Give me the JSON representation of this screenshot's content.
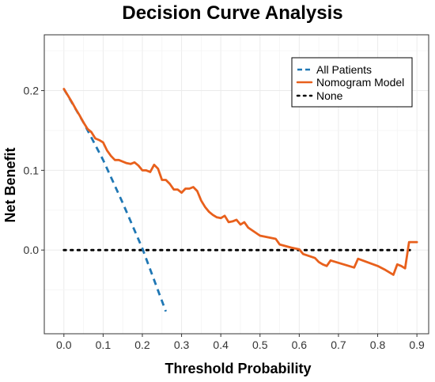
{
  "chart_data": {
    "type": "line",
    "title": "Decision Curve Analysis",
    "xlabel": "Threshold Probability",
    "ylabel": "Net Benefit",
    "xlim": [
      -0.05,
      0.93
    ],
    "ylim": [
      -0.105,
      0.27
    ],
    "x_ticks": [
      0.0,
      0.1,
      0.2,
      0.3,
      0.4,
      0.5,
      0.6,
      0.7,
      0.8,
      0.9
    ],
    "x_tick_labels": [
      "0.0",
      "0.1",
      "0.2",
      "0.3",
      "0.4",
      "0.5",
      "0.6",
      "0.7",
      "0.8",
      "0.9"
    ],
    "y_ticks": [
      0.0,
      0.1,
      0.2
    ],
    "y_tick_labels": [
      "0.0",
      "0.1",
      "0.2"
    ],
    "grid": true,
    "legend_position": "top-right",
    "series": [
      {
        "name": "All Patients",
        "color": "#1f77b4",
        "style": "dashed",
        "x": [
          0.0,
          0.05,
          0.1,
          0.15,
          0.2,
          0.26
        ],
        "y": [
          0.202,
          0.16,
          0.113,
          0.059,
          0.002,
          -0.077
        ]
      },
      {
        "name": "Nomogram Model",
        "color": "#e8601c",
        "style": "solid",
        "x": [
          0.0,
          0.01,
          0.02,
          0.03,
          0.04,
          0.05,
          0.06,
          0.07,
          0.08,
          0.09,
          0.1,
          0.11,
          0.12,
          0.13,
          0.14,
          0.15,
          0.16,
          0.17,
          0.18,
          0.19,
          0.2,
          0.21,
          0.22,
          0.23,
          0.24,
          0.25,
          0.26,
          0.27,
          0.28,
          0.29,
          0.3,
          0.31,
          0.32,
          0.33,
          0.34,
          0.35,
          0.36,
          0.37,
          0.38,
          0.39,
          0.4,
          0.41,
          0.42,
          0.43,
          0.44,
          0.45,
          0.46,
          0.47,
          0.5,
          0.52,
          0.54,
          0.55,
          0.58,
          0.6,
          0.61,
          0.64,
          0.65,
          0.66,
          0.67,
          0.68,
          0.7,
          0.72,
          0.74,
          0.75,
          0.8,
          0.82,
          0.84,
          0.85,
          0.86,
          0.87,
          0.88,
          0.89,
          0.9
        ],
        "y": [
          0.202,
          0.194,
          0.186,
          0.177,
          0.169,
          0.16,
          0.152,
          0.148,
          0.14,
          0.138,
          0.135,
          0.125,
          0.118,
          0.113,
          0.113,
          0.111,
          0.109,
          0.108,
          0.11,
          0.106,
          0.1,
          0.1,
          0.098,
          0.107,
          0.102,
          0.088,
          0.088,
          0.083,
          0.076,
          0.076,
          0.072,
          0.077,
          0.077,
          0.079,
          0.074,
          0.062,
          0.054,
          0.048,
          0.044,
          0.041,
          0.04,
          0.043,
          0.035,
          0.036,
          0.038,
          0.032,
          0.035,
          0.028,
          0.018,
          0.016,
          0.014,
          0.007,
          0.003,
          0.001,
          -0.005,
          -0.01,
          -0.015,
          -0.018,
          -0.02,
          -0.013,
          -0.016,
          -0.019,
          -0.022,
          -0.011,
          -0.02,
          -0.025,
          -0.031,
          -0.018,
          -0.02,
          -0.023,
          0.01,
          0.01,
          0.01
        ]
      },
      {
        "name": "None",
        "color": "#000000",
        "style": "dotted",
        "x": [
          0.0,
          0.89
        ],
        "y": [
          0.0,
          0.0
        ]
      }
    ]
  }
}
